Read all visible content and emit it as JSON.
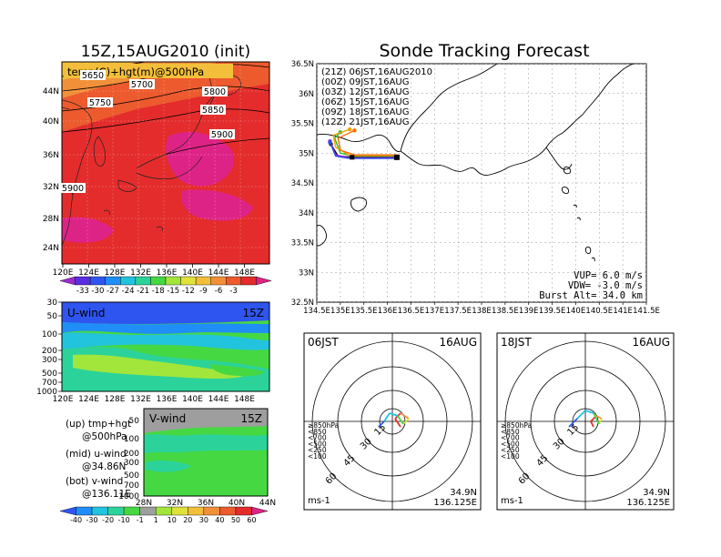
{
  "left_title": "15Z,15AUG2010 (init)",
  "right_title": "Sonde Tracking Forecast",
  "chart_data": [
    {
      "type": "heatmap",
      "id": "upper-map",
      "title": "temp(C)+hgt(m)@500hPa",
      "x_ticks": [
        "120E",
        "124E",
        "128E",
        "132E",
        "136E",
        "140E",
        "144E",
        "148E"
      ],
      "y_ticks": [
        "44N",
        "40N",
        "36N",
        "32N",
        "28N",
        "24N"
      ],
      "contour_labels": [
        "5650",
        "5700",
        "5750",
        "5800",
        "5850",
        "5900",
        "5900"
      ],
      "colorbar": {
        "labels": [
          "-33",
          "-30",
          "-27",
          "-24",
          "-21",
          "-18",
          "-15",
          "-12",
          "-9",
          "-6",
          "-3"
        ],
        "colors": [
          "#9c2bd0",
          "#5a2ee0",
          "#2f55f0",
          "#1f8ef7",
          "#22c3dd",
          "#2bd39a",
          "#46d843",
          "#a2e63b",
          "#dfe23b",
          "#f3bf3b",
          "#f2903a",
          "#ec5a2e",
          "#e42c2c",
          "#de2386"
        ]
      }
    },
    {
      "type": "heatmap",
      "id": "u-wind",
      "title": "U-wind",
      "time_label": "15Z",
      "y_ticks": [
        "30",
        "50",
        "100",
        "200",
        "300",
        "500",
        "700",
        "1000"
      ],
      "x_ticks": [
        "120E",
        "124E",
        "128E",
        "132E",
        "136E",
        "140E",
        "144E",
        "148E"
      ]
    },
    {
      "type": "heatmap",
      "id": "v-wind",
      "title": "V-wind",
      "time_label": "15Z",
      "y_ticks": [
        "50",
        "100",
        "200",
        "300",
        "500",
        "700",
        "1000"
      ],
      "x_ticks": [
        "28N",
        "32N",
        "36N",
        "40N",
        "44N"
      ],
      "colorbar": {
        "labels": [
          "-40",
          "-30",
          "-20",
          "-10",
          "-1",
          "1",
          "10",
          "20",
          "30",
          "40",
          "50",
          "60"
        ],
        "colors": [
          "#2f55f0",
          "#1f8ef7",
          "#22c3dd",
          "#2bd39a",
          "#46d843",
          "#9e9e9e",
          "#a2e63b",
          "#dfe23b",
          "#f3bf3b",
          "#f2903a",
          "#ec5a2e",
          "#e42c2c",
          "#de2386"
        ]
      }
    },
    {
      "type": "line",
      "id": "track-map",
      "x_ticks": [
        "134.5E",
        "135E",
        "135.5E",
        "136E",
        "136.5E",
        "137E",
        "137.5E",
        "138E",
        "138.5E",
        "139E",
        "139.5E",
        "140E",
        "140.5E",
        "141E",
        "141.5E"
      ],
      "y_ticks": [
        "36.5N",
        "36N",
        "35.5N",
        "35N",
        "34.5N",
        "34N",
        "33.5N",
        "33N",
        "32.5N"
      ],
      "xlim": [
        134.5,
        141.5
      ],
      "ylim": [
        32.5,
        36.5
      ],
      "series": [
        {
          "name": "(21Z)  06JST,16AUG2010",
          "color": "#000000",
          "lon": [
            136.2,
            135.8,
            135.3,
            134.95,
            134.8
          ],
          "lat": [
            34.93,
            34.93,
            34.93,
            34.95,
            35.15
          ]
        },
        {
          "name": "(00Z)  09JST,16AUG",
          "color": "#a020f0",
          "lon": [
            136.2,
            135.7,
            135.2,
            134.9,
            134.78
          ],
          "lat": [
            34.92,
            34.92,
            34.92,
            34.97,
            35.2
          ]
        },
        {
          "name": "(03Z)  12JST,16AUG",
          "color": "#2a4fe6",
          "lon": [
            136.2,
            135.7,
            135.2,
            134.9,
            134.78
          ],
          "lat": [
            34.91,
            34.91,
            34.91,
            34.95,
            35.18
          ]
        },
        {
          "name": "(06Z)  15JST,16AUG",
          "color": "#22c022",
          "lon": [
            136.2,
            135.8,
            135.3,
            135.0,
            134.88,
            135.0
          ],
          "lat": [
            34.95,
            34.95,
            34.95,
            35.0,
            35.25,
            35.35
          ]
        },
        {
          "name": "(09Z)  18JST,16AUG",
          "color": "#f0a000",
          "lon": [
            136.2,
            135.8,
            135.2,
            134.9,
            134.85,
            135.2
          ],
          "lat": [
            34.96,
            34.96,
            34.96,
            35.1,
            35.3,
            35.4
          ]
        },
        {
          "name": "(12Z)  21JST,16AUG",
          "color": "#ff6a00",
          "lon": [
            136.2,
            135.8,
            135.3,
            135.0,
            134.95,
            135.3
          ],
          "lat": [
            34.97,
            34.97,
            34.97,
            35.05,
            35.25,
            35.38
          ]
        }
      ],
      "info": [
        "VUP= 6.0 m/s",
        "VDW= -3.0 m/s",
        "Burst Alt= 34.0 km"
      ]
    },
    {
      "type": "scatter",
      "id": "polar-06",
      "time": "06JST",
      "date": "16AUG",
      "ring_labels": [
        "15",
        "30",
        "45",
        "60"
      ],
      "pressure_legend": [
        {
          "label": "≥850hPa",
          "color": "#e42c2c"
        },
        {
          "label": "<850",
          "color": "#f2903a"
        },
        {
          "label": "<700",
          "color": "#dfe23b"
        },
        {
          "label": "<500",
          "color": "#46d843"
        },
        {
          "label": "<250",
          "color": "#22c3dd"
        },
        {
          "label": "<100",
          "color": "#2f55f0"
        }
      ],
      "unit": "ms-1",
      "location": [
        "34.9N",
        "136.125E"
      ],
      "hodograph_u": [
        3,
        1,
        3,
        6,
        4,
        2,
        -1,
        -3,
        -5
      ],
      "hodograph_v": [
        -2,
        1,
        3,
        1,
        -1,
        2,
        3,
        0,
        -2
      ]
    },
    {
      "type": "scatter",
      "id": "polar-18",
      "time": "18JST",
      "date": "16AUG",
      "ring_labels": [
        "15",
        "30",
        "45",
        "60"
      ],
      "pressure_legend": [
        {
          "label": "≥850hPa",
          "color": "#e42c2c"
        },
        {
          "label": "<850",
          "color": "#f2903a"
        },
        {
          "label": "<700",
          "color": "#dfe23b"
        },
        {
          "label": "<500",
          "color": "#46d843"
        },
        {
          "label": "<250",
          "color": "#22c3dd"
        },
        {
          "label": "<100",
          "color": "#2f55f0"
        }
      ],
      "unit": "ms-1",
      "location": [
        "34.9N",
        "136.125E"
      ],
      "hodograph_u": [
        3,
        2,
        4,
        6,
        5,
        3,
        0,
        -3,
        -6
      ],
      "hodograph_v": [
        -2,
        0,
        2,
        1,
        -1,
        3,
        4,
        1,
        -2
      ]
    }
  ],
  "legend_notes": [
    [
      "(up) tmp+hgt",
      "@500hPa"
    ],
    [
      "(mid) u-wind",
      "@34.86N"
    ],
    [
      "(bot) v-wind",
      "@136.11E"
    ]
  ]
}
